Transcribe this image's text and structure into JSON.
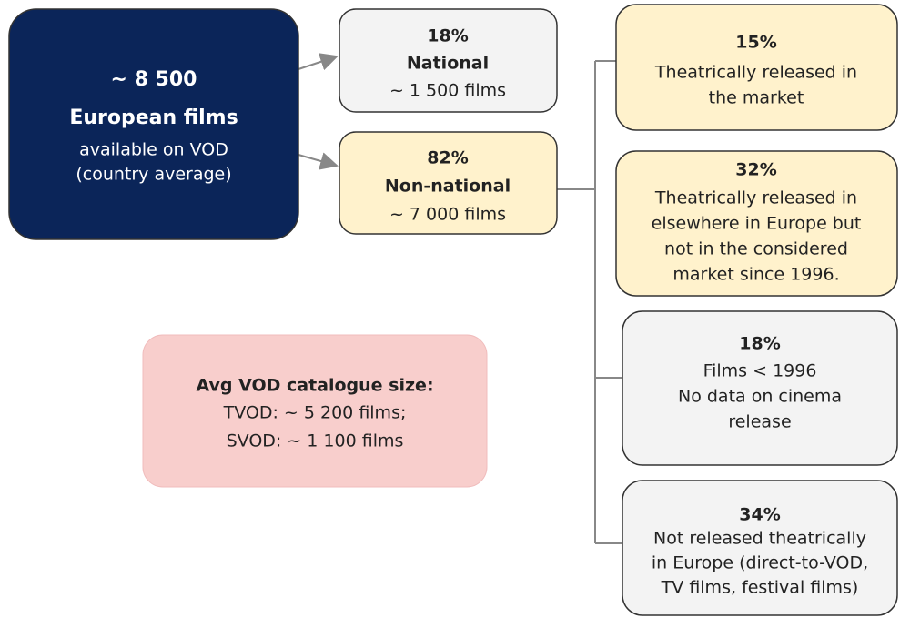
{
  "nodes": [
    {
      "lines": [
        "~ 8 500",
        "European films",
        "available on VOD",
        "(country average)"
      ]
    },
    {
      "lines": [
        "18%",
        "National",
        "~ 1 500 films"
      ]
    },
    {
      "lines": [
        "82%",
        "Non-national",
        "~ 7 000 films"
      ]
    },
    {
      "lines": [
        "Avg VOD catalogue size:",
        "TVOD: ~ 5 200 films;",
        "SVOD: ~ 1 100 films"
      ]
    },
    {
      "lines": [
        "15%",
        "Theatrically released in",
        "the market"
      ]
    },
    {
      "lines": [
        "32%",
        "Theatrically released in",
        "elsewhere in Europe but",
        "not in the considered",
        "market since 1996."
      ]
    },
    {
      "lines": [
        "18%",
        "Films < 1996",
        "No data on cinema",
        "release"
      ]
    },
    {
      "lines": [
        "34%",
        "Not released theatrically",
        "in Europe (direct-to-VOD,",
        "TV films, festival films)"
      ]
    }
  ]
}
